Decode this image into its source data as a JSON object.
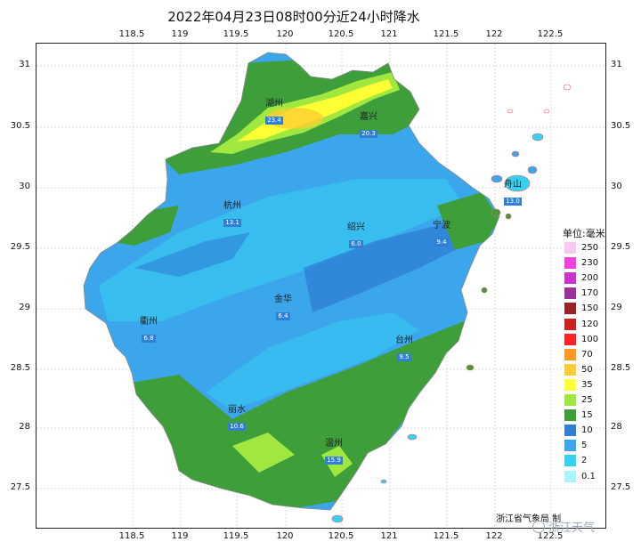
{
  "title": "2022年04月23日08时00分近24小时降水",
  "lon_ticks": [
    "118.5",
    "119",
    "119.5",
    "120",
    "120.5",
    "121",
    "121.5",
    "122",
    "122.5"
  ],
  "lat_ticks": [
    "31",
    "30.5",
    "30",
    "29.5",
    "29",
    "28.5",
    "28",
    "27.5"
  ],
  "legend": {
    "title": "单位:毫米",
    "levels": [
      {
        "label": "250",
        "color": "#f7c8f0"
      },
      {
        "label": "230",
        "color": "#ee44dd"
      },
      {
        "label": "200",
        "color": "#cc33cc"
      },
      {
        "label": "170",
        "color": "#993399"
      },
      {
        "label": "150",
        "color": "#992222"
      },
      {
        "label": "120",
        "color": "#cc2222"
      },
      {
        "label": "100",
        "color": "#ff2222"
      },
      {
        "label": "70",
        "color": "#ff9922"
      },
      {
        "label": "50",
        "color": "#ffcc33"
      },
      {
        "label": "35",
        "color": "#ffff33"
      },
      {
        "label": "25",
        "color": "#a0e840"
      },
      {
        "label": "15",
        "color": "#3e9e3a"
      },
      {
        "label": "10",
        "color": "#2f7fd6"
      },
      {
        "label": "5",
        "color": "#3ba6ec"
      },
      {
        "label": "2",
        "color": "#35d1f2"
      },
      {
        "label": "0.1",
        "color": "#a8f6fb"
      }
    ]
  },
  "cities": [
    {
      "name": "湖州",
      "value": "23.4"
    },
    {
      "name": "嘉兴",
      "value": "20.3"
    },
    {
      "name": "舟山",
      "value": "13.0"
    },
    {
      "name": "杭州",
      "value": "13.1"
    },
    {
      "name": "绍兴",
      "value": "6.0"
    },
    {
      "name": "宁波",
      "value": "9.4"
    },
    {
      "name": "金华",
      "value": "6.4"
    },
    {
      "name": "衢州",
      "value": "6.8"
    },
    {
      "name": "台州",
      "value": "9.5"
    },
    {
      "name": "丽水",
      "value": "10.6"
    },
    {
      "name": "温州",
      "value": "15.9"
    }
  ],
  "credit": "浙江省气象局 制",
  "watermark": "浙江天气"
}
